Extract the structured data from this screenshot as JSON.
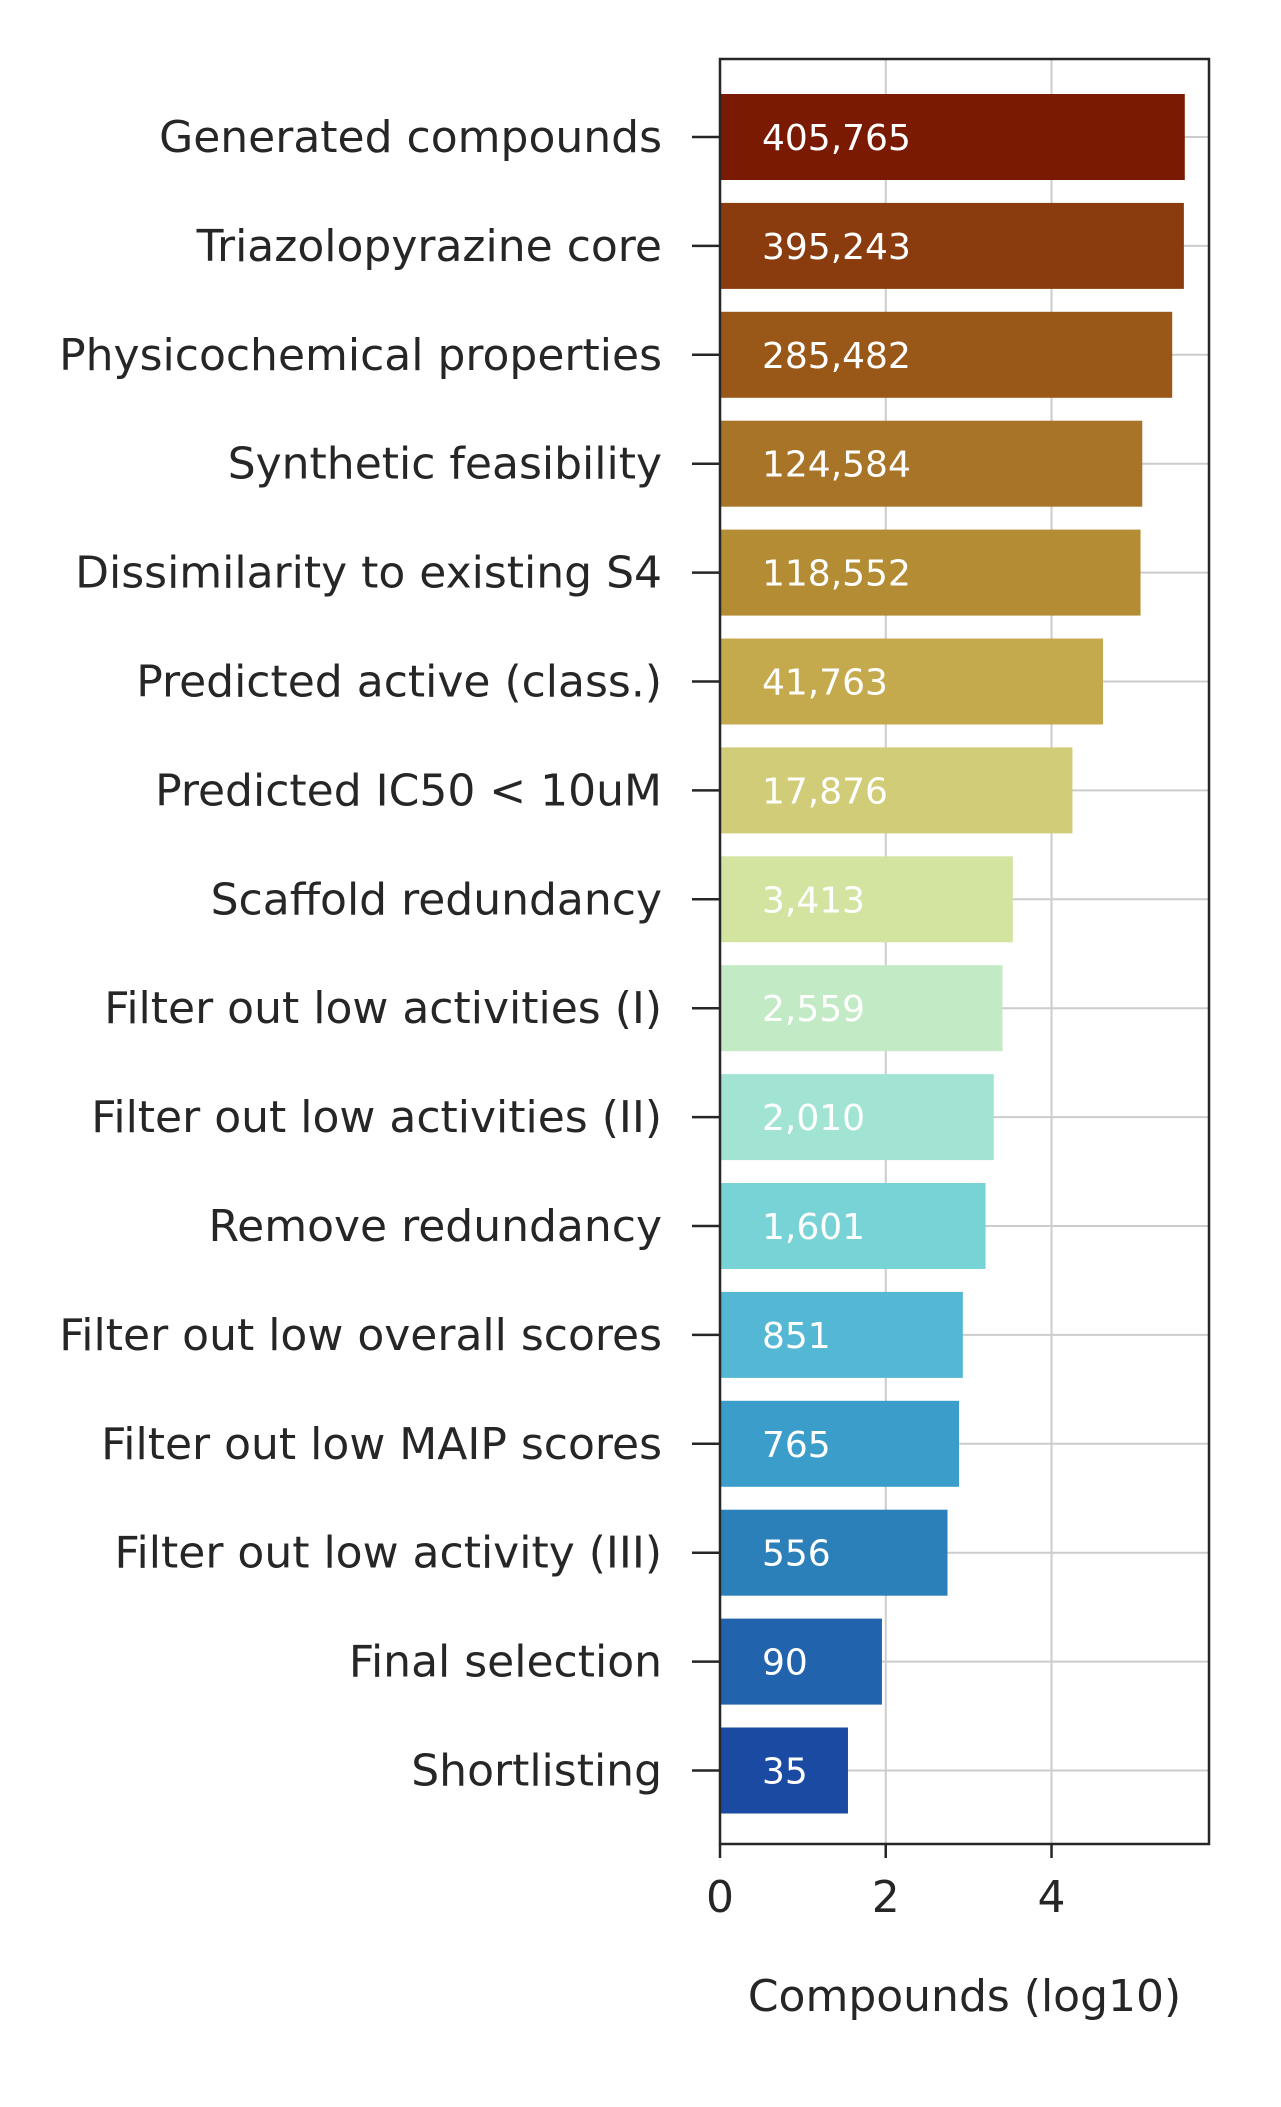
{
  "chart_data": {
    "type": "bar",
    "orientation": "horizontal",
    "title": "",
    "xlabel": "Compounds (log10)",
    "ylabel": "",
    "xlim": [
      0,
      5.9
    ],
    "xticks": [
      "0",
      "2",
      "4"
    ],
    "grid": true,
    "categories": [
      "Generated compounds",
      "Triazolopyrazine core",
      "Physicochemical properties",
      "Synthetic feasibility",
      "Dissimilarity to existing S4",
      "Predicted active (class.)",
      "Predicted IC50 < 10uM",
      "Scaffold redundancy",
      "Filter out low activities (I)",
      "Filter out low activities (II)",
      "Remove redundancy",
      "Filter out low overall scores",
      "Filter out low MAIP scores",
      "Filter out low activity (III)",
      "Final selection",
      "Shortlisting"
    ],
    "counts": [
      405765,
      395243,
      285482,
      124584,
      118552,
      41763,
      17876,
      3413,
      2559,
      2010,
      1601,
      851,
      765,
      556,
      90,
      35
    ],
    "values": [
      5.608,
      5.597,
      5.456,
      5.095,
      5.074,
      4.621,
      4.252,
      3.533,
      3.408,
      3.303,
      3.204,
      2.93,
      2.884,
      2.745,
      1.954,
      1.544
    ],
    "data_labels": [
      "405,765",
      "395,243",
      "285,482",
      "124,584",
      "118,552",
      "41,763",
      "17,876",
      "3,413",
      "2,559",
      "2,010",
      "1,601",
      "851",
      "765",
      "556",
      "90",
      "35"
    ],
    "colors": [
      "#7b1a02",
      "#8b3c0e",
      "#9a5818",
      "#a87528",
      "#b38c34",
      "#c5a94d",
      "#d1cc77",
      "#d3e4a1",
      "#c2eac5",
      "#a2e4d4",
      "#78d3d6",
      "#54b7d3",
      "#3b9dca",
      "#2b80ba",
      "#2263ae",
      "#1a4aa2"
    ],
    "legend": "none"
  }
}
